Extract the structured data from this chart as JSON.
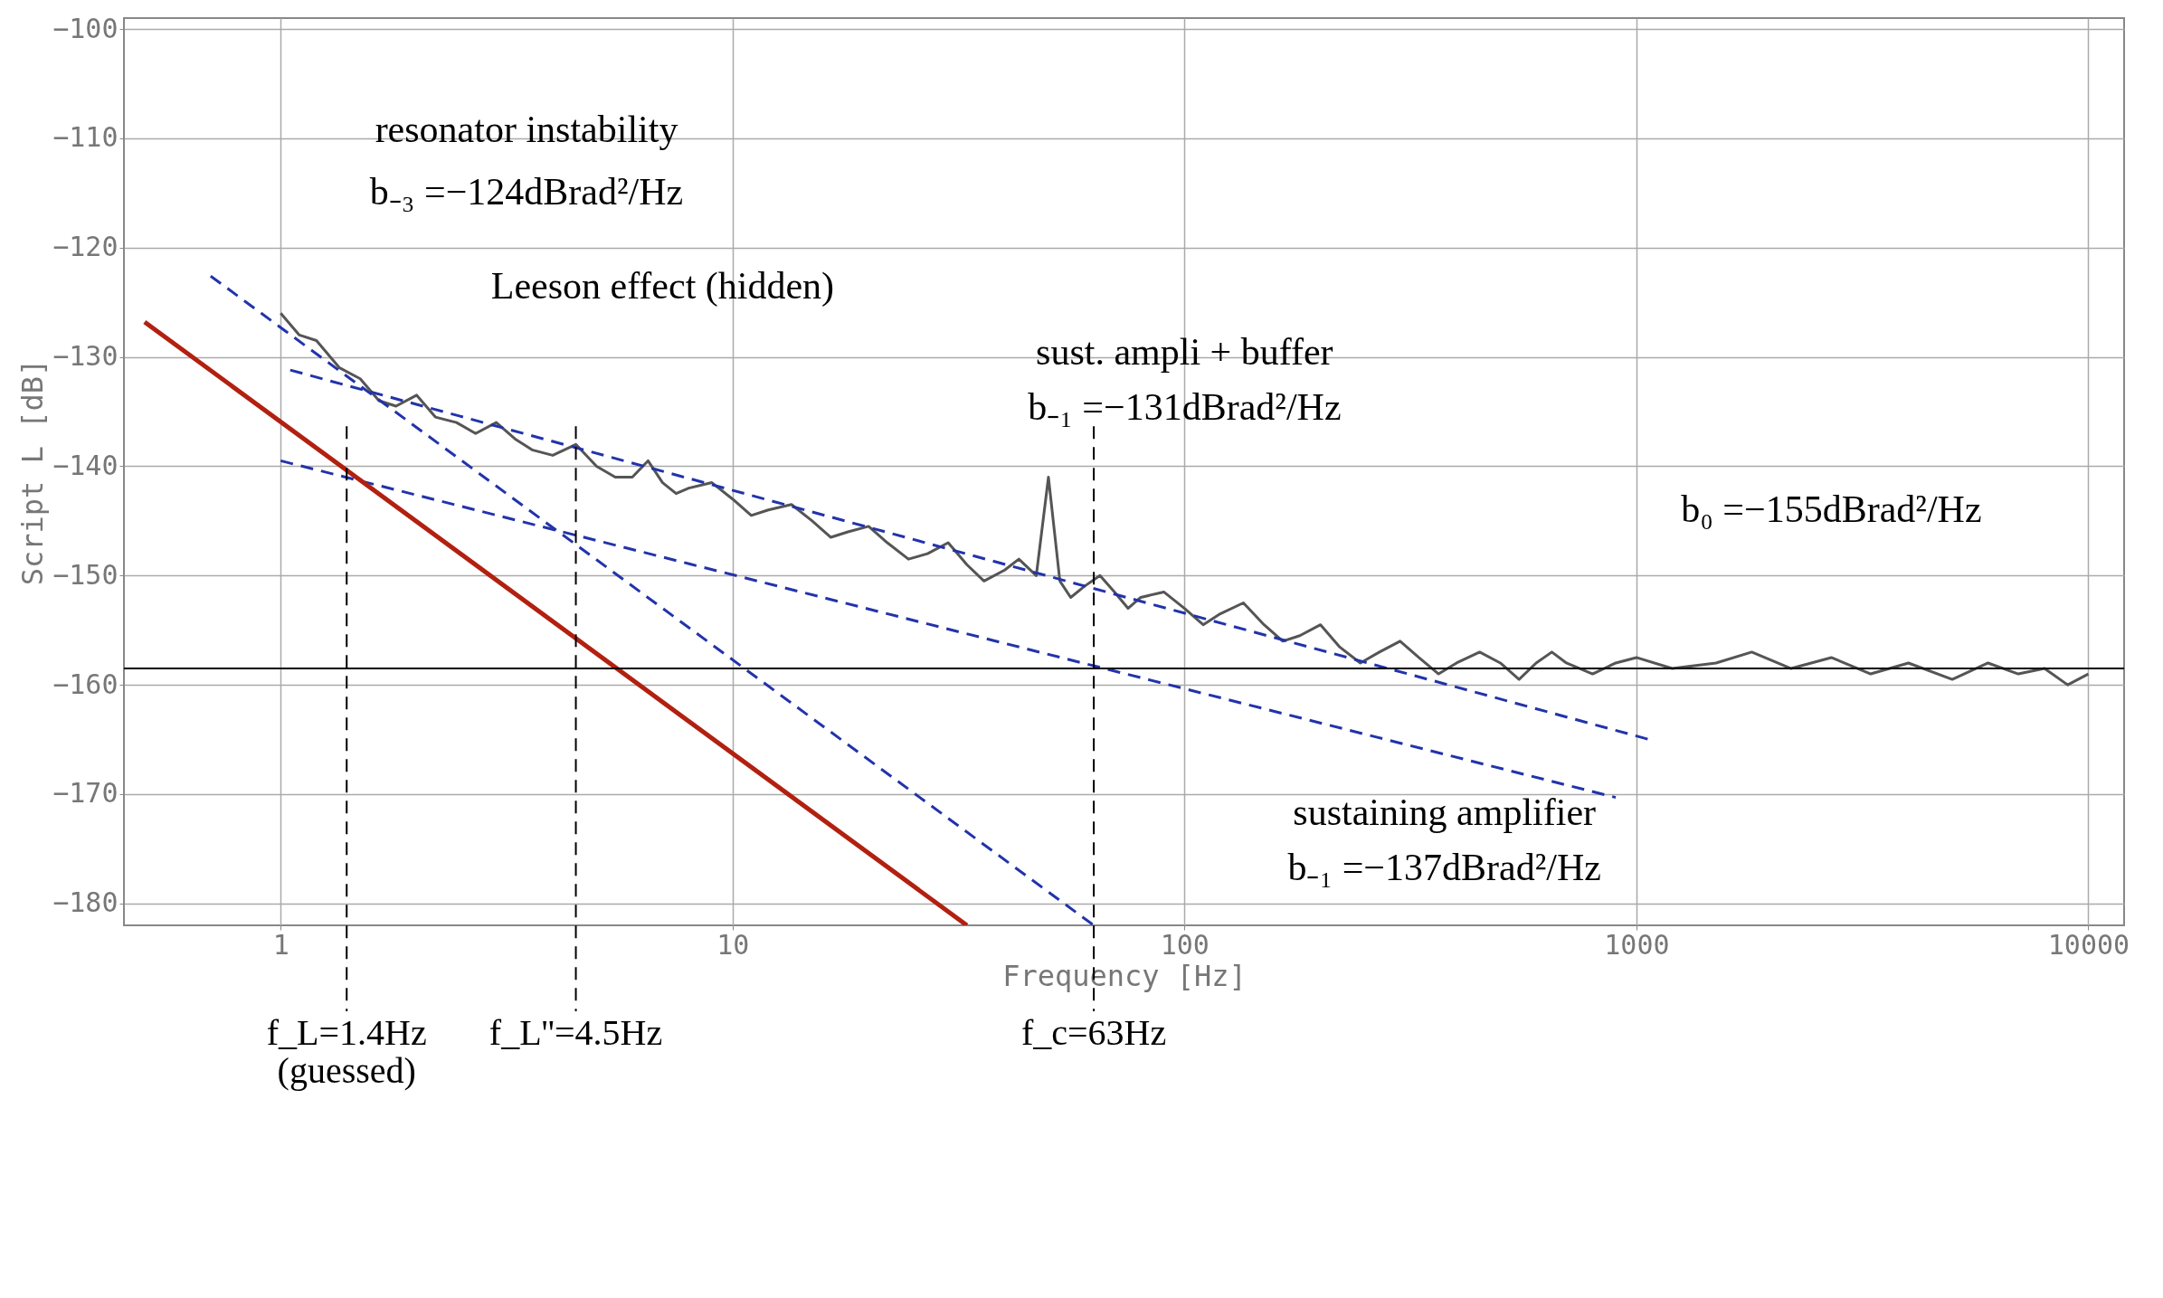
{
  "chart_data": {
    "type": "line",
    "xlabel": "Frequency [Hz]",
    "ylabel": "Script L [dB]",
    "log": "x",
    "grid": true,
    "xlim": [
      0.45,
      12000
    ],
    "ylim": [
      -182,
      -99
    ],
    "xticks": [
      1,
      10,
      100,
      1000,
      10000
    ],
    "yticks": [
      -100,
      -110,
      -120,
      -130,
      -140,
      -150,
      -160,
      -170,
      -180
    ],
    "series": [
      {
        "color": "#555555",
        "line_style": "solid",
        "x": [
          1,
          1.1,
          1.2,
          1.35,
          1.5,
          1.65,
          1.8,
          2,
          2.2,
          2.45,
          2.7,
          3,
          3.3,
          3.6,
          4,
          4.5,
          5,
          5.5,
          6,
          6.5,
          7,
          7.5,
          8,
          9,
          10,
          11,
          12,
          13.5,
          15,
          16.5,
          18,
          20,
          22,
          24.5,
          27,
          30,
          33,
          36,
          40,
          43,
          47,
          50,
          53,
          56,
          60,
          65,
          70,
          75,
          80,
          90,
          100,
          110,
          120,
          135,
          150,
          165,
          180,
          200,
          220,
          245,
          270,
          300,
          330,
          365,
          400,
          450,
          500,
          550,
          600,
          650,
          700,
          800,
          900,
          1000,
          1200,
          1500,
          1800,
          2200,
          2700,
          3300,
          4000,
          5000,
          6000,
          7000,
          8000,
          9000,
          10000
        ],
        "values": [
          -126,
          -128,
          -128.5,
          -131,
          -132,
          -134,
          -134.5,
          -133.5,
          -135.5,
          -136,
          -137,
          -136,
          -137.5,
          -138.5,
          -139,
          -138,
          -140,
          -141,
          -141,
          -139.5,
          -141.5,
          -142.5,
          -142,
          -141.5,
          -143,
          -144.5,
          -144,
          -143.5,
          -145,
          -146.5,
          -146,
          -145.5,
          -147,
          -148.5,
          -148,
          -147,
          -149,
          -150.5,
          -149.5,
          -148.5,
          -150,
          -141,
          -150.5,
          -152,
          -151,
          -150,
          -151.5,
          -153,
          -152,
          -151.5,
          -153,
          -154.5,
          -153.5,
          -152.5,
          -154.5,
          -156,
          -155.5,
          -154.5,
          -156.5,
          -158,
          -157,
          -156,
          -157.5,
          -159,
          -158,
          -157,
          -158,
          -159.5,
          -158,
          -157,
          -158,
          -159,
          -158,
          -157.5,
          -158.5,
          -158,
          -157,
          -158.5,
          -157.5,
          -159,
          -158,
          -159.5,
          -158,
          -159,
          -158.5,
          -160,
          -159
        ]
      },
      {
        "color": "#2233aa",
        "line_style": "dashed",
        "x": [
          0.7,
          63
        ],
        "values": [
          -122.6,
          -182
        ]
      },
      {
        "color": "#2233aa",
        "line_style": "dashed",
        "x": [
          1.05,
          1090
        ],
        "values": [
          -131.2,
          -165.1
        ]
      },
      {
        "color": "#2233aa",
        "line_style": "dashed",
        "x": [
          1,
          900
        ],
        "values": [
          -139.5,
          -170.3
        ]
      },
      {
        "color": "#b22010",
        "line_style": "solid",
        "x": [
          0.5,
          33
        ],
        "values": [
          -126.8,
          -182
        ]
      }
    ],
    "ref_lines": [
      {
        "axis": "y",
        "value": -158.5,
        "color": "#000000",
        "line_style": "solid"
      },
      {
        "axis": "x",
        "value": 1.4,
        "label": "f_L=1.4Hz (guessed)",
        "color": "#000000",
        "line_style": "dashed"
      },
      {
        "axis": "x",
        "value": 4.5,
        "label": "f_L''=4.5Hz",
        "color": "#000000",
        "line_style": "dashed"
      },
      {
        "axis": "x",
        "value": 63,
        "label": "f_c=63Hz",
        "color": "#000000",
        "line_style": "dashed"
      }
    ],
    "annotations": [
      "resonator instability",
      "b₋₃ =−124dBrad²/Hz",
      "Leeson effect (hidden)",
      "sust. ampli + buffer",
      "b₋₁ =−131dBrad²/Hz",
      "b₀ =−155dBrad²/Hz",
      "sustaining amplifier",
      "b₋₁ =−137dBrad²/Hz"
    ]
  }
}
